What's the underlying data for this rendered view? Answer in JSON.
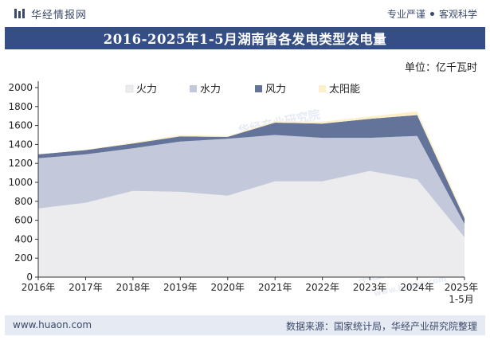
{
  "header": {
    "brand": "华经情报网",
    "slogan_left": "专业严谨",
    "slogan_right": "客观科学"
  },
  "title": "2016-2025年1-5月湖南省各发电类型发电量",
  "unit_label": "单位：亿千瓦时",
  "watermarks": [
    "华经产业研究院",
    "www.huaon.com"
  ],
  "footer": {
    "url": "www.huaon.com",
    "source": "数据来源：国家统计局，华经产业研究院整理"
  },
  "colors": {
    "title_bar": "#354f86",
    "footer_bg": "#e6eaf2",
    "header_text": "#3b4a6b",
    "watermark": "#c8d3e6"
  },
  "chart_data": {
    "type": "area",
    "stacked": true,
    "categories": [
      "2016年",
      "2017年",
      "2018年",
      "2019年",
      "2020年",
      "2021年",
      "2022年",
      "2023年",
      "2024年",
      "2025年\n1-5月"
    ],
    "series": [
      {
        "name": "火力",
        "color": "#ececef",
        "values": [
          725,
          785,
          910,
          900,
          860,
          1010,
          1010,
          1120,
          1030,
          420
        ]
      },
      {
        "name": "水力",
        "color": "#c3c9da",
        "values": [
          530,
          510,
          450,
          530,
          600,
          490,
          460,
          350,
          460,
          140
        ]
      },
      {
        "name": "风力",
        "color": "#64739a",
        "values": [
          40,
          45,
          50,
          55,
          20,
          130,
          150,
          200,
          220,
          60
        ]
      },
      {
        "name": "太阳能",
        "color": "#fbf0c8",
        "values": [
          0,
          5,
          10,
          15,
          10,
          15,
          20,
          25,
          40,
          25
        ]
      }
    ],
    "ylim": [
      0,
      2000
    ],
    "yticks": [
      0,
      200,
      400,
      600,
      800,
      1000,
      1200,
      1400,
      1600,
      1800,
      2000
    ],
    "grid": false,
    "legend_position": "top-center"
  }
}
